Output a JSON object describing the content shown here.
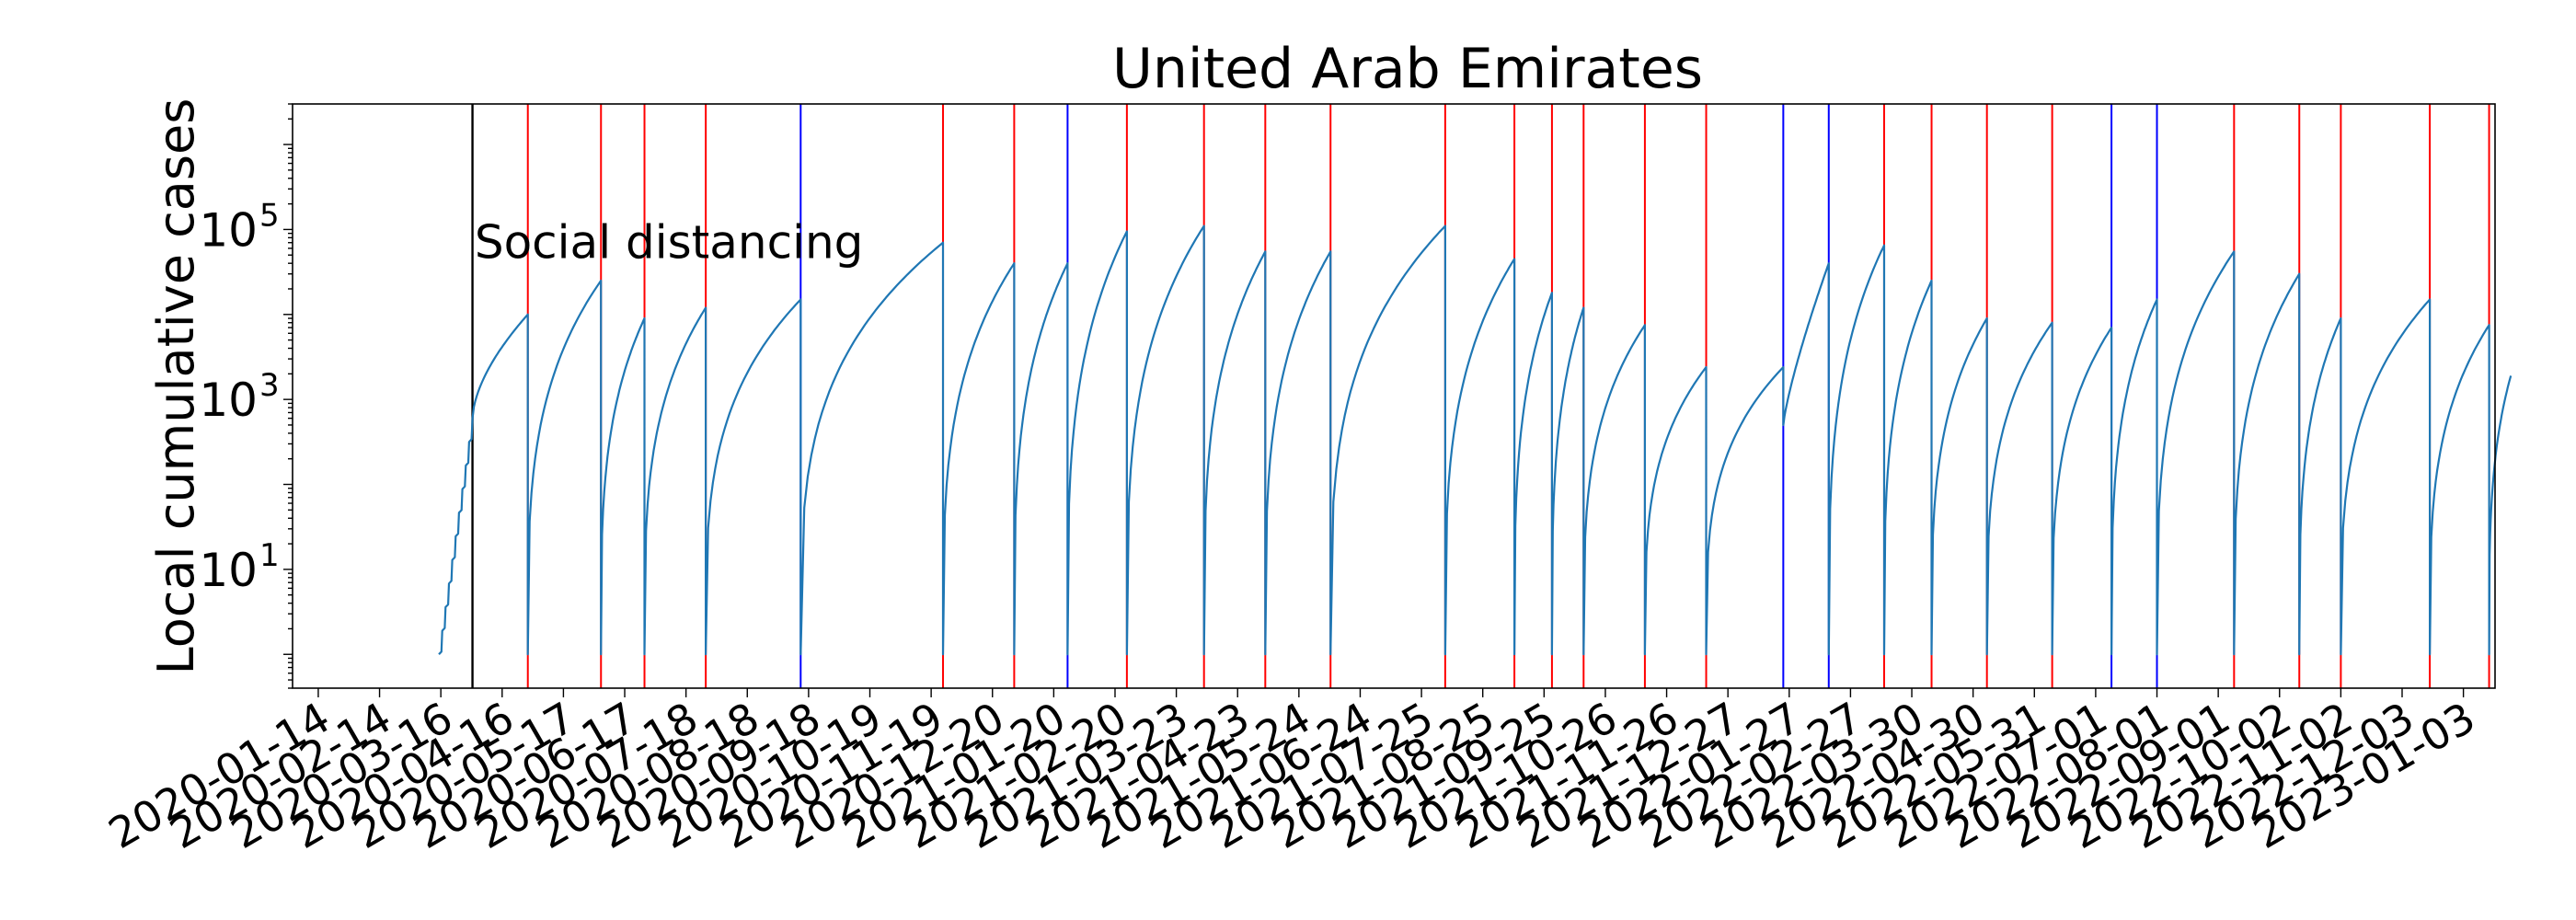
{
  "chart_data": {
    "type": "line",
    "title": "United Arab Emirates",
    "xlabel": "",
    "ylabel": "Local cumulative cases",
    "y_scale": "log",
    "ylim": [
      0.4,
      3000000
    ],
    "xlim": [
      "2020-01-01",
      "2023-01-19"
    ],
    "grid": false,
    "x_ticks": [
      "2020-01-14",
      "2020-02-14",
      "2020-03-16",
      "2020-04-16",
      "2020-05-17",
      "2020-06-17",
      "2020-07-18",
      "2020-08-18",
      "2020-09-18",
      "2020-10-19",
      "2020-11-19",
      "2020-12-20",
      "2021-01-20",
      "2021-02-20",
      "2021-03-23",
      "2021-04-23",
      "2021-05-24",
      "2021-06-24",
      "2021-07-25",
      "2021-08-25",
      "2021-09-25",
      "2021-10-26",
      "2021-11-26",
      "2021-12-27",
      "2022-01-27",
      "2022-02-27",
      "2022-03-30",
      "2022-04-30",
      "2022-05-31",
      "2022-07-01",
      "2022-08-01",
      "2022-09-01",
      "2022-10-02",
      "2022-11-02",
      "2022-12-03",
      "2023-01-03"
    ],
    "y_ticks": [
      {
        "value": 10,
        "label": "10",
        "exp": "1"
      },
      {
        "value": 1000,
        "label": "10",
        "exp": "3"
      },
      {
        "value": 100000,
        "label": "10",
        "exp": "5"
      }
    ],
    "annotations": [
      {
        "text": "Social distancing",
        "date": "2020-04-03",
        "value": 80000
      }
    ],
    "vlines": [
      {
        "date": "2020-04-01",
        "color": "#000000"
      },
      {
        "date": "2020-04-29",
        "color": "#ff0000"
      },
      {
        "date": "2020-06-05",
        "color": "#ff0000"
      },
      {
        "date": "2020-06-27",
        "color": "#ff0000"
      },
      {
        "date": "2020-07-28",
        "color": "#ff0000"
      },
      {
        "date": "2020-09-14",
        "color": "#0000ff"
      },
      {
        "date": "2020-11-25",
        "color": "#ff0000"
      },
      {
        "date": "2020-12-31",
        "color": "#ff0000"
      },
      {
        "date": "2021-01-27",
        "color": "#0000ff"
      },
      {
        "date": "2021-02-26",
        "color": "#ff0000"
      },
      {
        "date": "2021-04-06",
        "color": "#ff0000"
      },
      {
        "date": "2021-05-07",
        "color": "#ff0000"
      },
      {
        "date": "2021-06-09",
        "color": "#ff0000"
      },
      {
        "date": "2021-08-06",
        "color": "#ff0000"
      },
      {
        "date": "2021-09-10",
        "color": "#ff0000"
      },
      {
        "date": "2021-09-29",
        "color": "#ff0000"
      },
      {
        "date": "2021-10-15",
        "color": "#ff0000"
      },
      {
        "date": "2021-11-15",
        "color": "#ff0000"
      },
      {
        "date": "2021-12-16",
        "color": "#ff0000"
      },
      {
        "date": "2022-01-24",
        "color": "#0000ff"
      },
      {
        "date": "2022-02-16",
        "color": "#0000ff"
      },
      {
        "date": "2022-03-16",
        "color": "#ff0000"
      },
      {
        "date": "2022-04-09",
        "color": "#ff0000"
      },
      {
        "date": "2022-05-07",
        "color": "#ff0000"
      },
      {
        "date": "2022-06-09",
        "color": "#ff0000"
      },
      {
        "date": "2022-07-09",
        "color": "#0000ff"
      },
      {
        "date": "2022-08-01",
        "color": "#0000ff"
      },
      {
        "date": "2022-09-09",
        "color": "#ff0000"
      },
      {
        "date": "2022-10-12",
        "color": "#ff0000"
      },
      {
        "date": "2022-11-02",
        "color": "#ff0000"
      },
      {
        "date": "2022-12-17",
        "color": "#ff0000"
      },
      {
        "date": "2023-01-16",
        "color": "#ff0000"
      }
    ],
    "series": [
      {
        "color": "#1f77b4",
        "segments": [
          {
            "start": "2020-03-15",
            "end": "2020-04-01",
            "v0": 1,
            "v1": 600,
            "shape": "steps"
          },
          {
            "start": "2020-04-01",
            "end": "2020-04-29",
            "v0": 600,
            "v1": 10000,
            "shape": "conc"
          },
          {
            "start": "2020-04-29",
            "end": "2020-06-05",
            "v0": 1,
            "v1": 25000,
            "shape": "reset"
          },
          {
            "start": "2020-06-05",
            "end": "2020-06-27",
            "v0": 1,
            "v1": 9000,
            "shape": "reset"
          },
          {
            "start": "2020-06-27",
            "end": "2020-07-28",
            "v0": 1,
            "v1": 12000,
            "shape": "reset"
          },
          {
            "start": "2020-07-28",
            "end": "2020-09-14",
            "v0": 1,
            "v1": 15000,
            "shape": "reset"
          },
          {
            "start": "2020-09-14",
            "end": "2020-11-25",
            "v0": 1,
            "v1": 70000,
            "shape": "reset"
          },
          {
            "start": "2020-11-25",
            "end": "2020-12-31",
            "v0": 1,
            "v1": 40000,
            "shape": "reset"
          },
          {
            "start": "2020-12-31",
            "end": "2021-01-27",
            "v0": 1,
            "v1": 40000,
            "shape": "reset"
          },
          {
            "start": "2021-01-27",
            "end": "2021-02-26",
            "v0": 1,
            "v1": 95000,
            "shape": "reset"
          },
          {
            "start": "2021-02-26",
            "end": "2021-04-06",
            "v0": 1,
            "v1": 110000,
            "shape": "reset"
          },
          {
            "start": "2021-04-06",
            "end": "2021-05-07",
            "v0": 1,
            "v1": 55000,
            "shape": "reset"
          },
          {
            "start": "2021-05-07",
            "end": "2021-06-09",
            "v0": 1,
            "v1": 55000,
            "shape": "reset"
          },
          {
            "start": "2021-06-09",
            "end": "2021-08-06",
            "v0": 1,
            "v1": 110000,
            "shape": "reset"
          },
          {
            "start": "2021-08-06",
            "end": "2021-09-10",
            "v0": 1,
            "v1": 45000,
            "shape": "reset"
          },
          {
            "start": "2021-09-10",
            "end": "2021-09-29",
            "v0": 1,
            "v1": 18000,
            "shape": "reset"
          },
          {
            "start": "2021-09-29",
            "end": "2021-10-15",
            "v0": 1,
            "v1": 12000,
            "shape": "reset"
          },
          {
            "start": "2021-10-15",
            "end": "2021-11-15",
            "v0": 1,
            "v1": 7500,
            "shape": "reset"
          },
          {
            "start": "2021-11-15",
            "end": "2021-12-16",
            "v0": 1,
            "v1": 2400,
            "shape": "reset"
          },
          {
            "start": "2021-12-16",
            "end": "2022-01-24",
            "v0": 1,
            "v1": 2400,
            "shape": "reset"
          },
          {
            "start": "2022-01-24",
            "end": "2022-02-16",
            "v0": 500,
            "v1": 40000,
            "shape": "linlog"
          },
          {
            "start": "2022-02-16",
            "end": "2022-03-16",
            "v0": 1,
            "v1": 65000,
            "shape": "reset"
          },
          {
            "start": "2022-03-16",
            "end": "2022-04-09",
            "v0": 1,
            "v1": 25000,
            "shape": "reset"
          },
          {
            "start": "2022-04-09",
            "end": "2022-05-07",
            "v0": 1,
            "v1": 9000,
            "shape": "reset"
          },
          {
            "start": "2022-05-07",
            "end": "2022-06-09",
            "v0": 1,
            "v1": 8000,
            "shape": "reset"
          },
          {
            "start": "2022-06-09",
            "end": "2022-07-09",
            "v0": 1,
            "v1": 7000,
            "shape": "reset"
          },
          {
            "start": "2022-07-09",
            "end": "2022-08-01",
            "v0": 1,
            "v1": 15000,
            "shape": "reset"
          },
          {
            "start": "2022-08-01",
            "end": "2022-09-09",
            "v0": 1,
            "v1": 55000,
            "shape": "reset"
          },
          {
            "start": "2022-09-09",
            "end": "2022-10-12",
            "v0": 1,
            "v1": 30000,
            "shape": "reset"
          },
          {
            "start": "2022-10-12",
            "end": "2022-11-02",
            "v0": 1,
            "v1": 9000,
            "shape": "reset"
          },
          {
            "start": "2022-11-02",
            "end": "2022-12-17",
            "v0": 1,
            "v1": 15000,
            "shape": "reset"
          },
          {
            "start": "2022-12-17",
            "end": "2023-01-16",
            "v0": 1,
            "v1": 7500,
            "shape": "reset"
          },
          {
            "start": "2023-01-16",
            "end": "2023-01-27",
            "v0": 1,
            "v1": 1900,
            "shape": "reset"
          }
        ]
      }
    ]
  }
}
